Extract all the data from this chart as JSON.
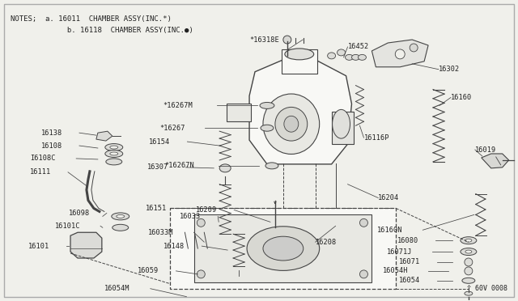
{
  "bg_color": "#f0f0eb",
  "border_color": "#aaaaaa",
  "line_color": "#444444",
  "text_color": "#222222",
  "notes_line1": "NOTES;  a. 16011  CHAMBER ASSY(INC.*)",
  "notes_line2": "             b. 16118  CHAMBER ASSY(INC.●)",
  "diagram_code": "^ 60V 0008",
  "figsize": [
    6.4,
    3.72
  ],
  "dpi": 100
}
